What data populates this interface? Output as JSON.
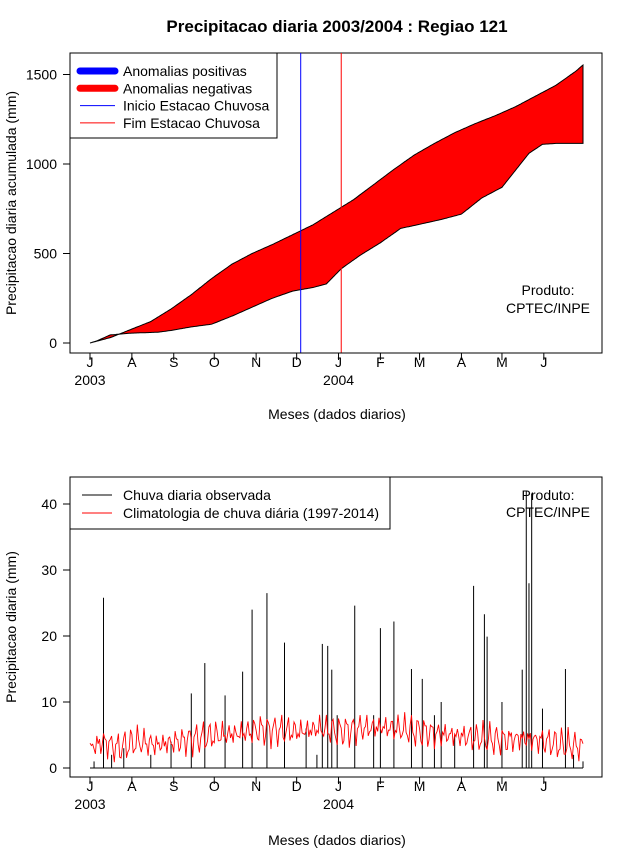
{
  "page": {
    "title": "Precipitacao diaria 2003/2004 : Regiao 121"
  },
  "chart_data": [
    {
      "type": "area",
      "ylabel": "Precipitacao diaria acumulada (mm)",
      "xlabel": "Meses (dados diarios)",
      "ylim": [
        0,
        1600
      ],
      "yticks": [
        0,
        500,
        1000,
        1500
      ],
      "months": [
        "J",
        "A",
        "S",
        "O",
        "N",
        "D",
        "J",
        "F",
        "M",
        "A",
        "M",
        "J"
      ],
      "month_day_offsets": [
        0,
        31,
        62,
        92,
        123,
        153,
        184,
        215,
        244,
        275,
        305,
        336
      ],
      "years": [
        {
          "label": "2003",
          "month_index": 0
        },
        {
          "label": "2004",
          "month_index": 6
        }
      ],
      "n_days": 366,
      "legend": [
        {
          "label": "Anomalias positivas",
          "color": "#0000ff",
          "kind": "thick"
        },
        {
          "label": "Anomalias negativas",
          "color": "#ff0000",
          "kind": "thick"
        },
        {
          "label": "Inicio Estacao Chuvosa",
          "color": "#0000ff",
          "kind": "thin"
        },
        {
          "label": "Fim Estacao Chuvosa",
          "color": "#ff0000",
          "kind": "thin"
        }
      ],
      "rainy_season": {
        "start_day": 156,
        "end_day": 186
      },
      "observed_cum_knots": [
        [
          0,
          0
        ],
        [
          5,
          12
        ],
        [
          15,
          45
        ],
        [
          30,
          55
        ],
        [
          50,
          60
        ],
        [
          60,
          70
        ],
        [
          75,
          90
        ],
        [
          90,
          105
        ],
        [
          105,
          150
        ],
        [
          120,
          200
        ],
        [
          135,
          250
        ],
        [
          150,
          290
        ],
        [
          165,
          310
        ],
        [
          175,
          330
        ],
        [
          186,
          415
        ],
        [
          200,
          490
        ],
        [
          215,
          560
        ],
        [
          230,
          640
        ],
        [
          245,
          665
        ],
        [
          260,
          690
        ],
        [
          275,
          720
        ],
        [
          290,
          810
        ],
        [
          305,
          870
        ],
        [
          315,
          965
        ],
        [
          325,
          1060
        ],
        [
          335,
          1110
        ],
        [
          345,
          1115
        ],
        [
          366,
          1115
        ]
      ],
      "climatology_cum_knots": [
        [
          0,
          0
        ],
        [
          15,
          30
        ],
        [
          30,
          75
        ],
        [
          45,
          120
        ],
        [
          60,
          190
        ],
        [
          75,
          270
        ],
        [
          90,
          360
        ],
        [
          105,
          440
        ],
        [
          120,
          500
        ],
        [
          135,
          550
        ],
        [
          150,
          605
        ],
        [
          165,
          660
        ],
        [
          180,
          730
        ],
        [
          195,
          800
        ],
        [
          210,
          885
        ],
        [
          225,
          970
        ],
        [
          240,
          1050
        ],
        [
          255,
          1115
        ],
        [
          270,
          1175
        ],
        [
          285,
          1225
        ],
        [
          300,
          1270
        ],
        [
          315,
          1320
        ],
        [
          330,
          1380
        ],
        [
          345,
          1440
        ],
        [
          360,
          1520
        ],
        [
          366,
          1560
        ]
      ],
      "annotation": {
        "line1": "Produto:",
        "line2": "CPTEC/INPE"
      }
    },
    {
      "type": "bar",
      "ylabel": "Precipitacao diaria (mm)",
      "xlabel": "Meses (dados diarios)",
      "ylim": [
        0,
        44
      ],
      "yticks": [
        0,
        10,
        20,
        30,
        40
      ],
      "legend": [
        {
          "label": "Chuva diaria observada",
          "color": "#000000",
          "kind": "thin"
        },
        {
          "label": "Climatologia de chuva diária (1997-2014)",
          "color": "#ff0000",
          "kind": "thin"
        }
      ],
      "daily_rain": [
        [
          3,
          1
        ],
        [
          10,
          25.8
        ],
        [
          16,
          2
        ],
        [
          25,
          3
        ],
        [
          45,
          2
        ],
        [
          60,
          4
        ],
        [
          75,
          11.3
        ],
        [
          85,
          15.9
        ],
        [
          100,
          11
        ],
        [
          113,
          14.6
        ],
        [
          120,
          24
        ],
        [
          131,
          26.5
        ],
        [
          144,
          19
        ],
        [
          160,
          6
        ],
        [
          168,
          2
        ],
        [
          172,
          18.8
        ],
        [
          176,
          18.5
        ],
        [
          179,
          14.9
        ],
        [
          183,
          8
        ],
        [
          196,
          24.6
        ],
        [
          210,
          8
        ],
        [
          215,
          21.2
        ],
        [
          225,
          22.2
        ],
        [
          238,
          15
        ],
        [
          246,
          13.5
        ],
        [
          255,
          8
        ],
        [
          260,
          10
        ],
        [
          270,
          5
        ],
        [
          284,
          27.6
        ],
        [
          292,
          23.3
        ],
        [
          294,
          19.9
        ],
        [
          305,
          10
        ],
        [
          320,
          14.9
        ],
        [
          323,
          42
        ],
        [
          325,
          28
        ],
        [
          327,
          41.6
        ],
        [
          335,
          9
        ],
        [
          352,
          15
        ],
        [
          358,
          2
        ],
        [
          365,
          1
        ]
      ],
      "climatology_knots": [
        [
          0,
          3
        ],
        [
          10,
          4
        ],
        [
          20,
          3
        ],
        [
          35,
          4
        ],
        [
          50,
          3.5
        ],
        [
          65,
          4
        ],
        [
          80,
          4.5
        ],
        [
          95,
          5
        ],
        [
          110,
          5.2
        ],
        [
          125,
          5.8
        ],
        [
          140,
          5.7
        ],
        [
          155,
          5.5
        ],
        [
          170,
          6
        ],
        [
          185,
          5.5
        ],
        [
          200,
          6
        ],
        [
          215,
          6.2
        ],
        [
          230,
          5.9
        ],
        [
          245,
          5.5
        ],
        [
          260,
          5.1
        ],
        [
          275,
          4.8
        ],
        [
          290,
          4.5
        ],
        [
          305,
          4.2
        ],
        [
          320,
          4.5
        ],
        [
          335,
          4.1
        ],
        [
          350,
          3.5
        ],
        [
          366,
          3.2
        ]
      ],
      "annotation": {
        "line1": "Produto:",
        "line2": "CPTEC/INPE"
      }
    }
  ]
}
